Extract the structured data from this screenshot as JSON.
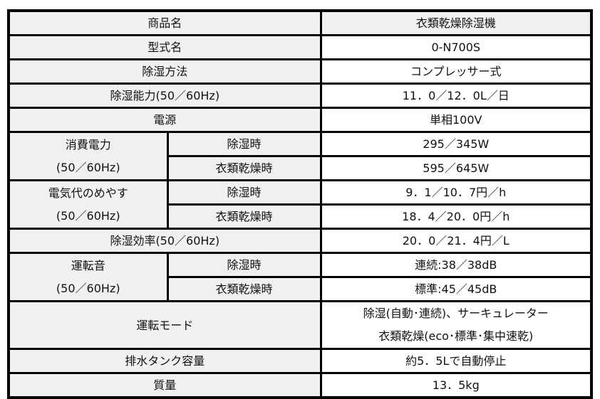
{
  "rows": {
    "product_name": {
      "label": "商品名",
      "value": "衣類乾燥除湿機"
    },
    "model": {
      "label": "型式名",
      "value": "0-N700S"
    },
    "method": {
      "label": "除湿方法",
      "value": "コンプレッサー式"
    },
    "capacity": {
      "label": "除湿能力(50／60Hz)",
      "value": "11．0／12．0L／日"
    },
    "power_supply": {
      "label": "電源",
      "value": "単相100V"
    },
    "power_consumption": {
      "label_line1": "消費電力",
      "label_line2": "(50／60Hz)",
      "sub": [
        {
          "label": "除湿時",
          "value": "295／345W"
        },
        {
          "label": "衣類乾燥時",
          "value": "595／645W"
        }
      ]
    },
    "electricity_cost": {
      "label_line1": "電気代のめやす",
      "label_line2": "(50／60Hz)",
      "sub": [
        {
          "label": "除湿時",
          "value": "9．1／10．7円／h"
        },
        {
          "label": "衣類乾燥時",
          "value": "18．4／20．0円／h"
        }
      ]
    },
    "efficiency": {
      "label": "除湿効率(50／60Hz)",
      "value": "20．0／21．4円／L"
    },
    "noise": {
      "label_line1": "運転音",
      "label_line2": "(50／60Hz)",
      "sub": [
        {
          "label": "除湿時",
          "value": "連続:38／38dB"
        },
        {
          "label": "衣類乾燥時",
          "value": "標準:45／45dB"
        }
      ]
    },
    "modes": {
      "label": "運転モード",
      "value_line1": "除湿(自動･連続)、サーキュレーター",
      "value_line2": "衣類乾燥(eco･標準･集中速乾)"
    },
    "tank": {
      "label": "排水タンク容量",
      "value": "約5．5Lで自動停止"
    },
    "weight": {
      "label": "質量",
      "value": "13．5kg"
    }
  }
}
